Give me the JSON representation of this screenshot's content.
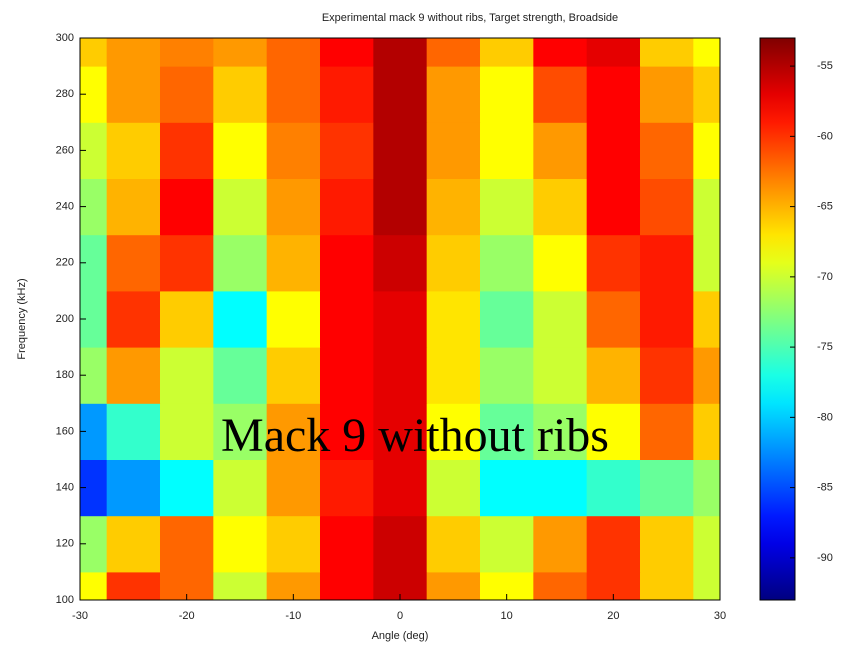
{
  "chart_data": {
    "type": "heatmap",
    "title": "Experimental mack 9 without ribs, Target strength, Broadside",
    "xlabel": "Angle (deg)",
    "ylabel": "Frequency (kHz)",
    "annotation": "Mack 9 without ribs",
    "colormap": "jet",
    "x": [
      -30,
      -25,
      -20,
      -15,
      -10,
      -5,
      0,
      5,
      10,
      15,
      20,
      25,
      30
    ],
    "y": [
      100,
      120,
      140,
      160,
      180,
      200,
      220,
      240,
      260,
      280,
      300
    ],
    "z": [
      [
        -68,
        -60,
        -62,
        -70,
        -64,
        -58,
        -56,
        -64,
        -68,
        -62,
        -60,
        -66,
        -70
      ],
      [
        -72,
        -66,
        -62,
        -68,
        -66,
        -58,
        -56,
        -66,
        -70,
        -64,
        -60,
        -66,
        -70
      ],
      [
        -86,
        -82,
        -78,
        -70,
        -64,
        -59,
        -57,
        -70,
        -78,
        -78,
        -76,
        -74,
        -72
      ],
      [
        -82,
        -76,
        -70,
        -72,
        -64,
        -58,
        -57,
        -68,
        -74,
        -72,
        -68,
        -62,
        -66
      ],
      [
        -72,
        -64,
        -70,
        -74,
        -66,
        -58,
        -57,
        -67,
        -72,
        -70,
        -65,
        -60,
        -64
      ],
      [
        -74,
        -60,
        -66,
        -78,
        -68,
        -58,
        -57,
        -67,
        -74,
        -70,
        -62,
        -59,
        -66
      ],
      [
        -74,
        -62,
        -60,
        -72,
        -65,
        -58,
        -56,
        -66,
        -72,
        -68,
        -60,
        -59,
        -70
      ],
      [
        -72,
        -65,
        -58,
        -70,
        -64,
        -59,
        -55,
        -65,
        -70,
        -66,
        -58,
        -61,
        -70
      ],
      [
        -70,
        -66,
        -60,
        -68,
        -63,
        -60,
        -55,
        -64,
        -68,
        -64,
        -58,
        -62,
        -68
      ],
      [
        -68,
        -64,
        -62,
        -66,
        -62,
        -59,
        -55,
        -64,
        -68,
        -61,
        -58,
        -64,
        -66
      ],
      [
        -66,
        -64,
        -63,
        -64,
        -62,
        -58,
        -55,
        -62,
        -66,
        -58,
        -57,
        -66,
        -68
      ]
    ],
    "xlim": [
      -30,
      30
    ],
    "xticks": [
      -30,
      -20,
      -10,
      0,
      10,
      20,
      30
    ],
    "ylim": [
      100,
      300
    ],
    "yticks": [
      100,
      120,
      140,
      160,
      180,
      200,
      220,
      240,
      260,
      280,
      300
    ],
    "clim": [
      -93,
      -53
    ],
    "cticks": [
      -55,
      -60,
      -65,
      -70,
      -75,
      -80,
      -85,
      -90
    ]
  }
}
